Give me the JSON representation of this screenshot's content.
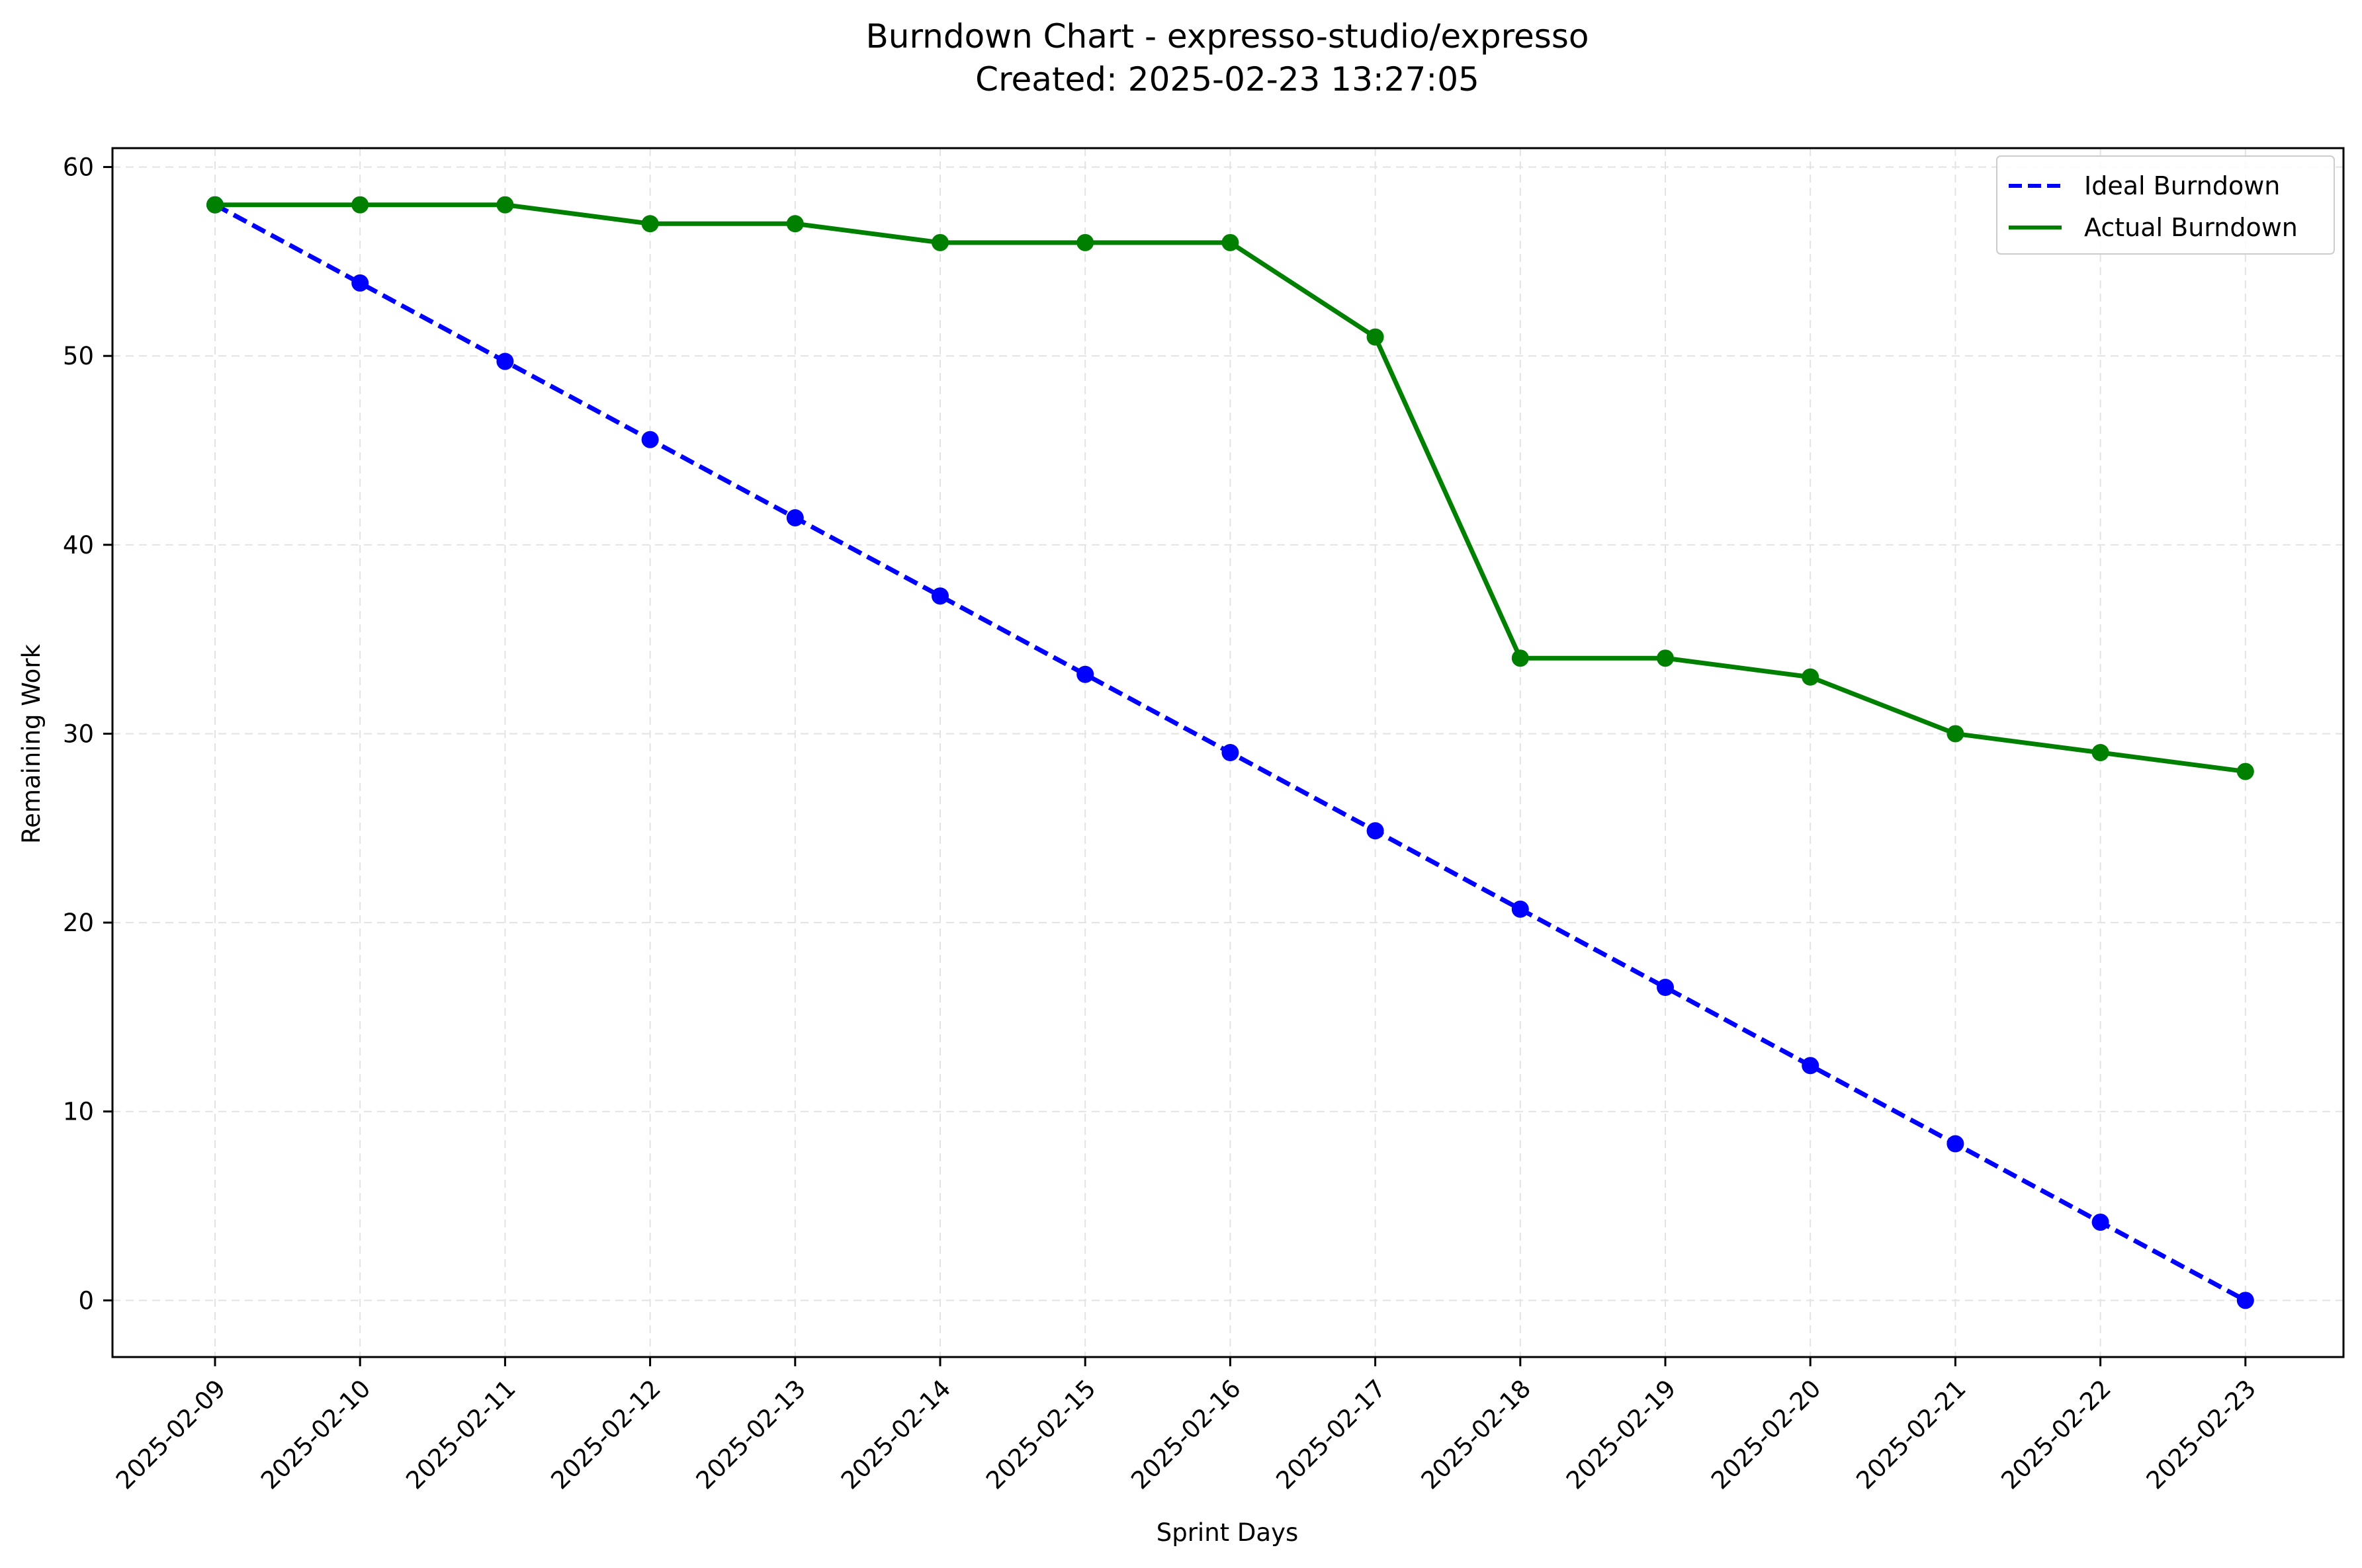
{
  "chart_data": {
    "type": "line",
    "title": "Burndown Chart - expresso-studio/expresso",
    "subtitle": "Created: 2025-02-23 13:27:05",
    "xlabel": "Sprint Days",
    "ylabel": "Remaining Work",
    "categories": [
      "2025-02-09",
      "2025-02-10",
      "2025-02-11",
      "2025-02-12",
      "2025-02-13",
      "2025-02-14",
      "2025-02-15",
      "2025-02-16",
      "2025-02-17",
      "2025-02-18",
      "2025-02-19",
      "2025-02-20",
      "2025-02-21",
      "2025-02-22",
      "2025-02-23"
    ],
    "ylim": [
      -3,
      61
    ],
    "yticks": [
      0,
      10,
      20,
      30,
      40,
      50,
      60
    ],
    "grid": true,
    "legend_position": "top-right",
    "series": [
      {
        "name": "Ideal Burndown",
        "color": "#0000ff",
        "style": "dashed",
        "marker": "circle",
        "values": [
          58,
          53.86,
          49.71,
          45.57,
          41.43,
          37.29,
          33.14,
          29.0,
          24.86,
          20.71,
          16.57,
          12.43,
          8.29,
          4.14,
          0
        ]
      },
      {
        "name": "Actual Burndown",
        "color": "#008000",
        "style": "solid",
        "marker": "circle",
        "values": [
          58,
          58,
          58,
          57,
          57,
          56,
          56,
          56,
          51,
          34,
          34,
          33,
          30,
          29,
          28
        ]
      }
    ]
  }
}
